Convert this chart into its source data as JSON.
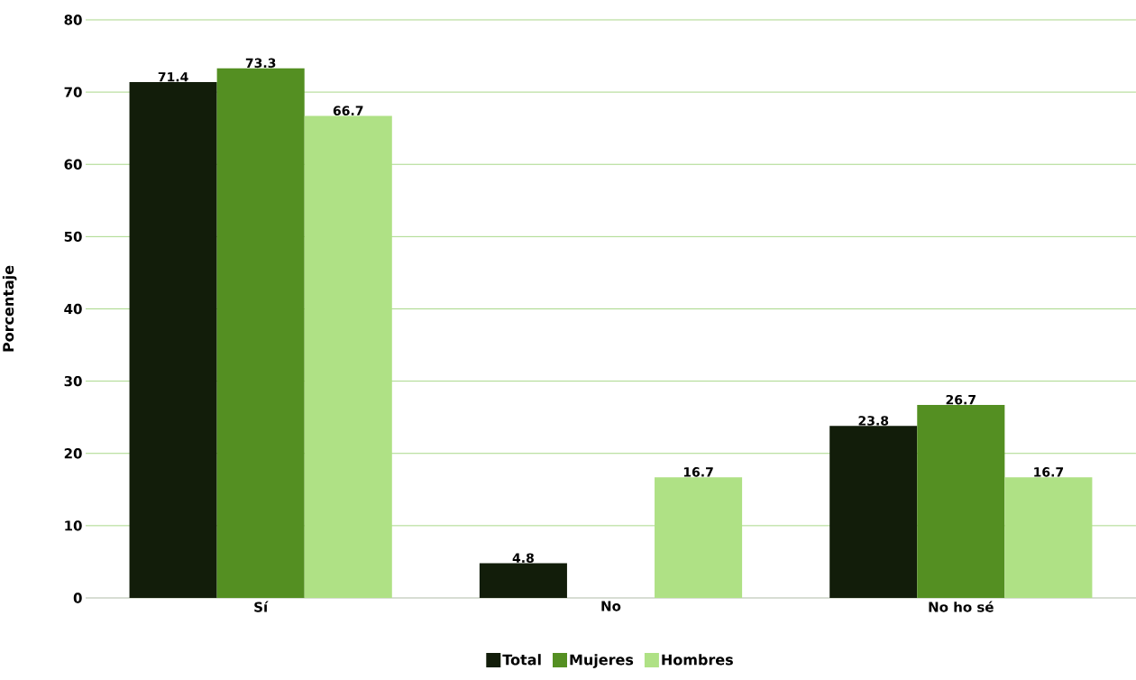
{
  "chart_data": {
    "type": "bar",
    "ylabel": "Porcentaje",
    "categories": [
      "Sí",
      "No",
      "No ho sé"
    ],
    "series": [
      {
        "name": "Total",
        "color": "#121d0a",
        "values": [
          71.4,
          4.8,
          23.8
        ]
      },
      {
        "name": "Mujeres",
        "color": "#548f22",
        "values": [
          73.3,
          null,
          26.7
        ]
      },
      {
        "name": "Hombres",
        "color": "#afe185",
        "values": [
          66.7,
          16.7,
          16.7
        ]
      }
    ],
    "ylim": [
      0,
      80
    ],
    "yticks": [
      0,
      10,
      20,
      30,
      40,
      50,
      60,
      70,
      80
    ],
    "grid": "y",
    "legend": "bottom",
    "data_labels": true
  }
}
